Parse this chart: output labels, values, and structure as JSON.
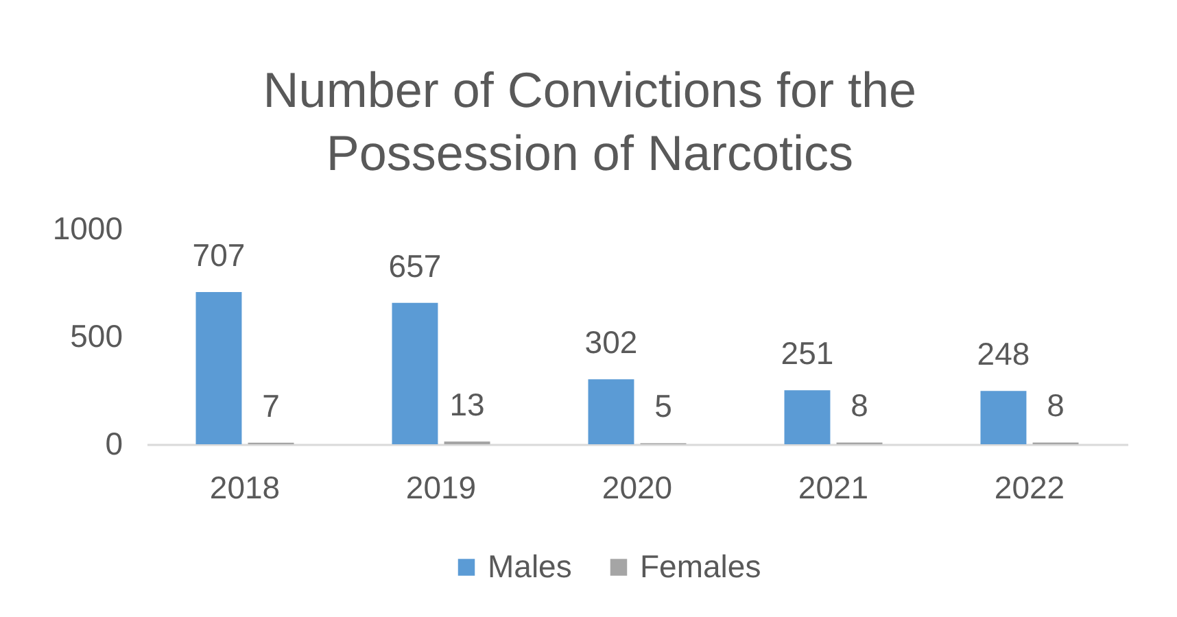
{
  "chart_data": {
    "type": "bar",
    "title": "Number of Convictions for the Possession of Narcotics",
    "categories": [
      "2018",
      "2019",
      "2020",
      "2021",
      "2022"
    ],
    "series": [
      {
        "name": "Males",
        "color": "#5b9bd5",
        "values": [
          707,
          657,
          302,
          251,
          248
        ]
      },
      {
        "name": "Females",
        "color": "#a5a5a5",
        "values": [
          7,
          13,
          5,
          8,
          8
        ]
      }
    ],
    "ylim": [
      0,
      1000
    ],
    "yticks": [
      0,
      500,
      1000
    ],
    "data_labels": true,
    "legend": "bottom"
  }
}
